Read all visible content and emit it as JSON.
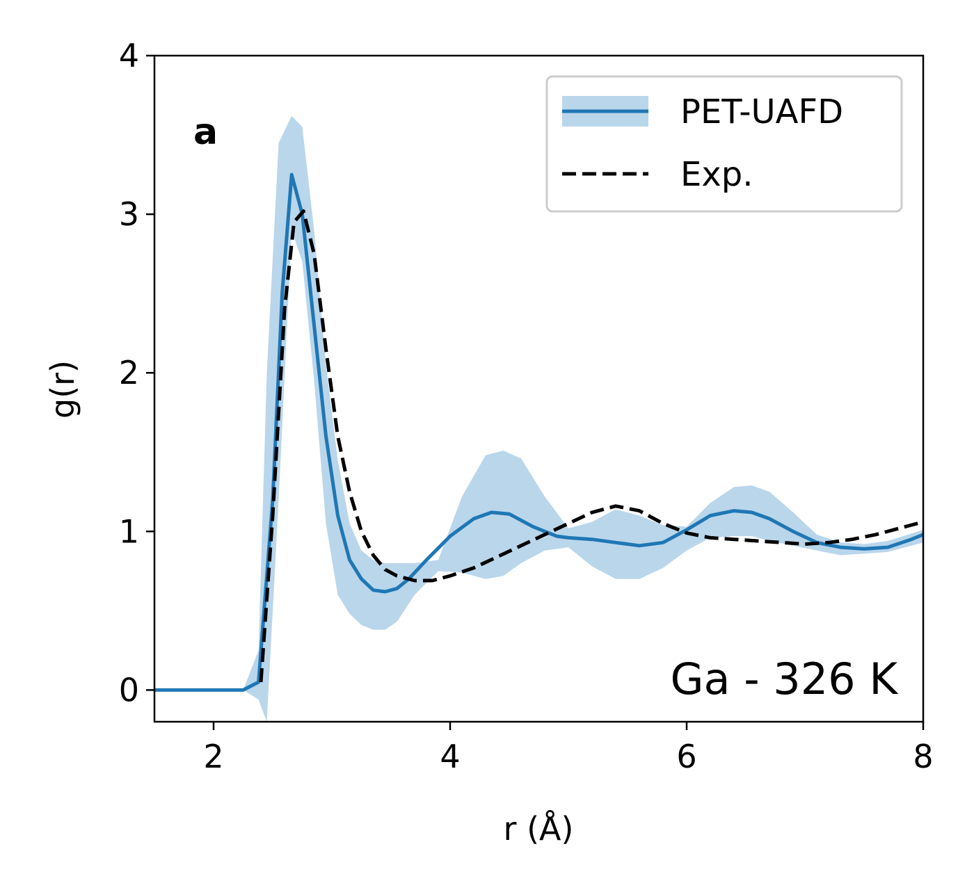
{
  "chart_data": {
    "type": "line",
    "panel_label": "a",
    "annotation": "Ga - 326 K",
    "xlabel": "r (Å)",
    "ylabel": "g(r)",
    "xlim": [
      1.5,
      8.0
    ],
    "ylim": [
      -0.2,
      4.0
    ],
    "xticks": [
      2,
      4,
      6,
      8
    ],
    "yticks": [
      0,
      1,
      2,
      3,
      4
    ],
    "grid": false,
    "legend_position": "top-right",
    "colors": {
      "pet": "#1f77b4",
      "band": "#a9cce6",
      "exp": "#000000"
    },
    "series": [
      {
        "name": "PET-UAFD",
        "style": "solid",
        "x": [
          1.5,
          1.8,
          2.0,
          2.2,
          2.25,
          2.38,
          2.5,
          2.58,
          2.66,
          2.75,
          2.85,
          2.95,
          3.05,
          3.15,
          3.25,
          3.35,
          3.45,
          3.55,
          3.65,
          3.8,
          4.0,
          4.2,
          4.35,
          4.5,
          4.7,
          4.9,
          5.0,
          5.2,
          5.4,
          5.6,
          5.8,
          6.0,
          6.2,
          6.4,
          6.55,
          6.7,
          6.9,
          7.1,
          7.3,
          7.5,
          7.7,
          7.9,
          8.0
        ],
        "y": [
          0,
          0,
          0,
          0,
          0,
          0.05,
          1.2,
          2.5,
          3.25,
          3.0,
          2.3,
          1.6,
          1.1,
          0.82,
          0.7,
          0.63,
          0.62,
          0.64,
          0.7,
          0.82,
          0.97,
          1.08,
          1.12,
          1.11,
          1.03,
          0.97,
          0.96,
          0.95,
          0.93,
          0.91,
          0.93,
          1.01,
          1.1,
          1.13,
          1.12,
          1.08,
          1.0,
          0.93,
          0.9,
          0.89,
          0.9,
          0.95,
          0.98
        ]
      },
      {
        "name": "PET-UAFD uncertainty band",
        "style": "band",
        "x": [
          1.5,
          2.2,
          2.25,
          2.38,
          2.45,
          2.55,
          2.66,
          2.75,
          2.85,
          2.95,
          3.05,
          3.15,
          3.25,
          3.35,
          3.45,
          3.55,
          3.7,
          3.9,
          4.1,
          4.3,
          4.45,
          4.6,
          4.8,
          5.0,
          5.2,
          5.4,
          5.6,
          5.8,
          6.0,
          6.2,
          6.4,
          6.55,
          6.7,
          6.9,
          7.1,
          7.3,
          7.5,
          7.7,
          8.0
        ],
        "upper": [
          0,
          0,
          0,
          0.25,
          2.0,
          3.45,
          3.62,
          3.55,
          2.9,
          2.05,
          1.45,
          1.05,
          0.88,
          0.82,
          0.8,
          0.8,
          0.8,
          0.82,
          1.22,
          1.48,
          1.51,
          1.46,
          1.22,
          1.02,
          1.06,
          1.14,
          1.1,
          1.04,
          1.03,
          1.18,
          1.28,
          1.29,
          1.25,
          1.12,
          0.98,
          0.93,
          0.92,
          0.94,
          1.01
        ],
        "lower": [
          0,
          0,
          0,
          -0.06,
          -0.2,
          1.2,
          2.9,
          2.7,
          1.95,
          1.05,
          0.6,
          0.48,
          0.41,
          0.38,
          0.38,
          0.43,
          0.6,
          0.75,
          0.74,
          0.7,
          0.72,
          0.8,
          0.88,
          0.9,
          0.78,
          0.7,
          0.7,
          0.77,
          0.88,
          0.96,
          0.97,
          0.97,
          0.94,
          0.91,
          0.88,
          0.85,
          0.86,
          0.87,
          0.93
        ]
      },
      {
        "name": "Exp.",
        "style": "dashed",
        "x": [
          2.4,
          2.5,
          2.6,
          2.68,
          2.76,
          2.85,
          2.95,
          3.05,
          3.15,
          3.25,
          3.35,
          3.45,
          3.55,
          3.7,
          3.85,
          4.0,
          4.2,
          4.4,
          4.6,
          4.8,
          5.0,
          5.2,
          5.4,
          5.6,
          5.8,
          6.0,
          6.2,
          6.4,
          6.6,
          6.8,
          7.0,
          7.2,
          7.4,
          7.6,
          7.8,
          8.0
        ],
        "y": [
          0.05,
          1.1,
          2.4,
          2.95,
          3.02,
          2.75,
          2.15,
          1.6,
          1.25,
          1.0,
          0.85,
          0.76,
          0.72,
          0.69,
          0.69,
          0.72,
          0.77,
          0.84,
          0.91,
          0.98,
          1.05,
          1.12,
          1.16,
          1.13,
          1.05,
          0.99,
          0.96,
          0.95,
          0.94,
          0.93,
          0.92,
          0.93,
          0.95,
          0.98,
          1.02,
          1.06
        ]
      }
    ]
  }
}
